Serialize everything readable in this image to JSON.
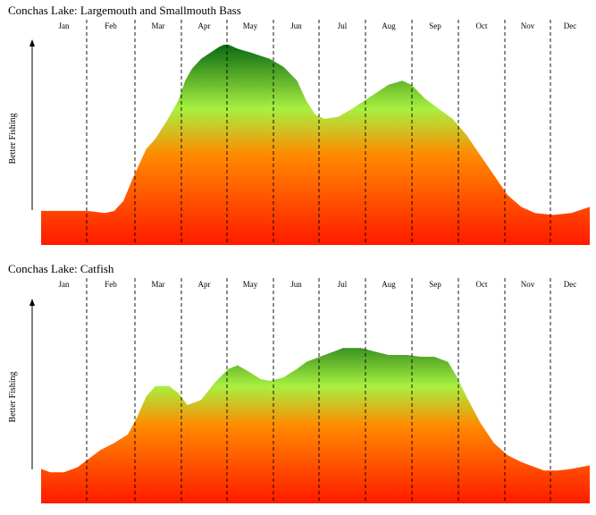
{
  "colors": {
    "low": "#ff1a00",
    "mid_low": "#ff8a00",
    "mid_high": "#a8f040",
    "high": "#0a6a12",
    "divider": "#000000"
  },
  "chart_data": [
    {
      "type": "area",
      "title": "Conchas Lake: Largemouth and Smallmouth Bass",
      "ylabel": "Better Fishing",
      "categories": [
        "Jan",
        "Feb",
        "Mar",
        "Apr",
        "May",
        "Jun",
        "Jul",
        "Aug",
        "Sep",
        "Oct",
        "Nov",
        "Dec"
      ],
      "xlim": [
        0,
        12
      ],
      "ylim": [
        0,
        100
      ],
      "x": [
        0,
        0.5,
        1,
        1.4,
        1.6,
        1.8,
        2.0,
        2.3,
        2.5,
        2.75,
        3.0,
        3.15,
        3.3,
        3.5,
        3.7,
        3.9,
        4.0,
        4.1,
        4.3,
        4.6,
        5.0,
        5.3,
        5.6,
        5.8,
        6.0,
        6.2,
        6.5,
        6.8,
        7.2,
        7.6,
        7.9,
        8.1,
        8.4,
        8.7,
        9.0,
        9.3,
        9.6,
        9.9,
        10.2,
        10.5,
        10.8,
        11.2,
        11.6,
        12.0
      ],
      "y": [
        17,
        17,
        17,
        16,
        17,
        22,
        33,
        48,
        53,
        62,
        72,
        82,
        88,
        93,
        96,
        99,
        100,
        100,
        98,
        96,
        93,
        89,
        82,
        72,
        65,
        63,
        64,
        68,
        74,
        80,
        82,
        80,
        73,
        68,
        63,
        55,
        45,
        35,
        25,
        19,
        16,
        15,
        16,
        19
      ]
    },
    {
      "type": "area",
      "title": "Conchas Lake: Catfish",
      "ylabel": "Better Fishing",
      "categories": [
        "Jan",
        "Feb",
        "Mar",
        "Apr",
        "May",
        "Jun",
        "Jul",
        "Aug",
        "Sep",
        "Oct",
        "Nov",
        "Dec"
      ],
      "xlim": [
        0,
        12
      ],
      "ylim": [
        0,
        100
      ],
      "x": [
        0,
        0.2,
        0.5,
        0.8,
        1.0,
        1.3,
        1.6,
        1.9,
        2.1,
        2.3,
        2.5,
        2.8,
        3.0,
        3.2,
        3.5,
        3.8,
        4.1,
        4.3,
        4.5,
        4.8,
        5.0,
        5.3,
        5.6,
        5.8,
        6.0,
        6.3,
        6.6,
        7.0,
        7.3,
        7.6,
        8.0,
        8.3,
        8.6,
        8.9,
        9.1,
        9.3,
        9.6,
        9.9,
        10.2,
        10.5,
        10.8,
        11.0,
        11.3,
        11.6,
        12.0
      ],
      "y": [
        20,
        18,
        18,
        21,
        25,
        31,
        35,
        40,
        50,
        62,
        68,
        68,
        64,
        57,
        60,
        70,
        78,
        80,
        77,
        72,
        71,
        73,
        78,
        82,
        84,
        87,
        90,
        90,
        88,
        86,
        86,
        85,
        85,
        82,
        73,
        62,
        47,
        35,
        28,
        24,
        21,
        19,
        19,
        20,
        22
      ]
    }
  ]
}
